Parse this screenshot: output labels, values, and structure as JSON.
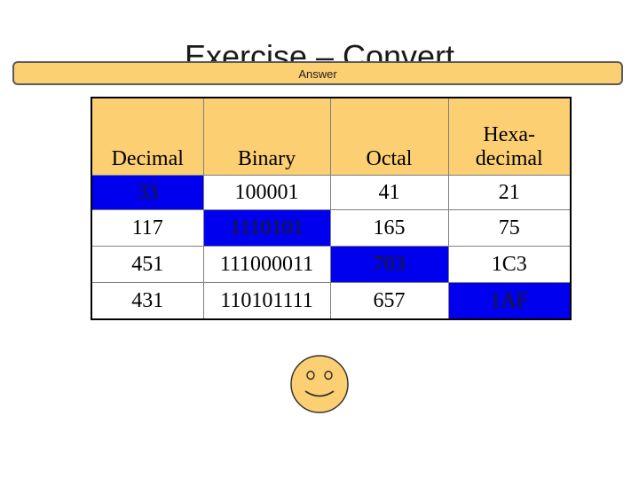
{
  "slide": {
    "title": "Exercise – Convert",
    "answer_label": "Answer"
  },
  "table": {
    "headers": [
      "Decimal",
      "Binary",
      "Octal",
      "Hexa-\ndecimal"
    ],
    "rows": [
      {
        "cells": [
          "33",
          "100001",
          "41",
          "21"
        ],
        "highlight_col": 0
      },
      {
        "cells": [
          "117",
          "1110101",
          "165",
          "75"
        ],
        "highlight_col": 1
      },
      {
        "cells": [
          "451",
          "111000011",
          "703",
          "1C3"
        ],
        "highlight_col": 2
      },
      {
        "cells": [
          "431",
          "110101111",
          "657",
          "1AF"
        ],
        "highlight_col": 3
      }
    ]
  },
  "colors": {
    "header_bg": "#fccf72",
    "highlight_bg": "#0000ee",
    "smiley_fill": "#fccf72"
  },
  "icons": {
    "smiley": "smiley-face-icon"
  }
}
